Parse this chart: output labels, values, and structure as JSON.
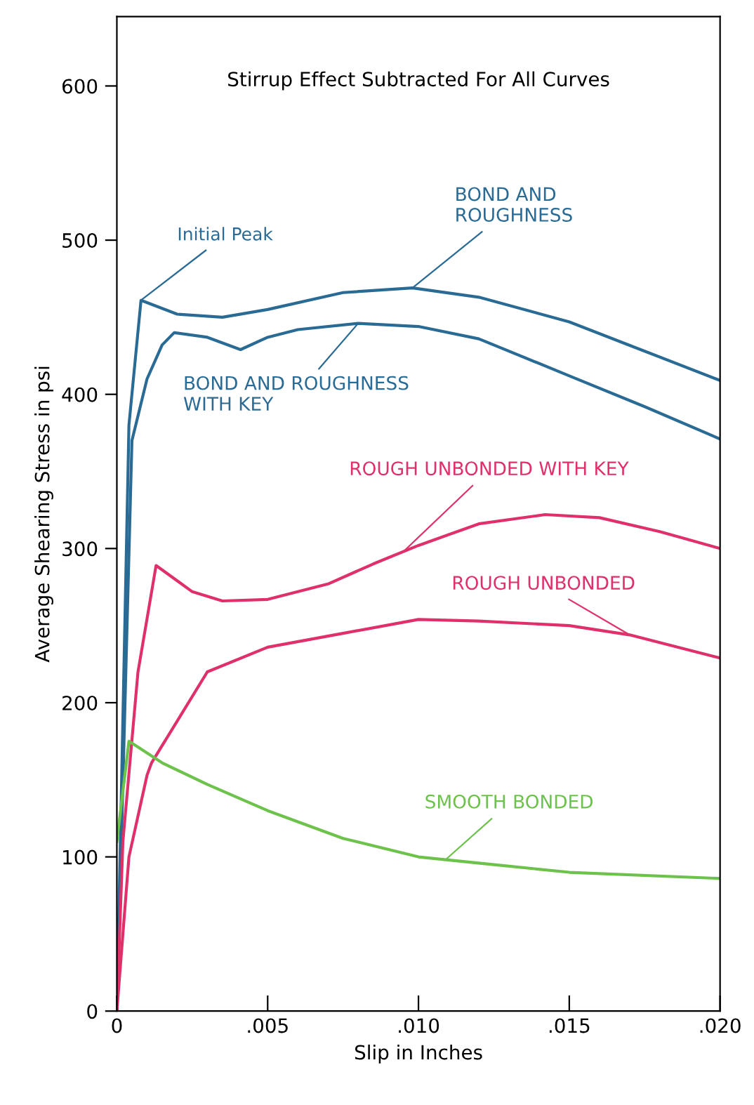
{
  "chart_data": {
    "type": "line",
    "xlabel": "Slip in Inches",
    "ylabel": "Average Shearing Stress in psi",
    "xlim": [
      0,
      0.02
    ],
    "ylim": [
      0,
      645
    ],
    "xticks": [
      0,
      {
        "value": 0.005,
        "label": ".005"
      },
      {
        "value": 0.01,
        "label": ".010"
      },
      {
        "value": 0.015,
        "label": ".015"
      },
      {
        "value": 0.02,
        "label": ".020"
      }
    ],
    "yticks": [
      0,
      100,
      200,
      300,
      400,
      500,
      600
    ],
    "grid": false,
    "legend": false,
    "marker": "none",
    "line_style": "solid",
    "annotations": [
      "Stirrup Effect Subtracted For All Curves",
      {
        "text": "Initial Peak",
        "x": 0.0008,
        "y": 461
      }
    ],
    "series": [
      {
        "name": "BOND AND ROUGHNESS",
        "color": "#2a6b95",
        "x": [
          0,
          0.0004,
          0.0008,
          0.002,
          0.0035,
          0.005,
          0.0075,
          0.0098,
          0.012,
          0.015,
          0.0175,
          0.02
        ],
        "values": [
          0,
          380,
          461,
          452,
          450,
          455,
          466,
          469,
          463,
          447,
          428,
          409
        ]
      },
      {
        "name": "BOND AND ROUGHNESS WITH KEY",
        "color": "#2a6b95",
        "x": [
          0,
          0.0005,
          0.001,
          0.0015,
          0.0019,
          0.003,
          0.0041,
          0.005,
          0.006,
          0.008,
          0.01,
          0.012,
          0.015,
          0.0175,
          0.02
        ],
        "values": [
          0,
          370,
          410,
          432,
          440,
          437,
          429,
          437,
          442,
          446,
          444,
          436,
          412,
          392,
          371
        ]
      },
      {
        "name": "ROUGH UNBONDED WITH KEY",
        "color": "#e0306a",
        "x": [
          0,
          0.0002,
          0.0007,
          0.0013,
          0.0025,
          0.0035,
          0.005,
          0.007,
          0.0085,
          0.01,
          0.012,
          0.0142,
          0.016,
          0.018,
          0.02
        ],
        "values": [
          0,
          110,
          220,
          289,
          272,
          266,
          267,
          277,
          290,
          302,
          316,
          322,
          320,
          311,
          300
        ]
      },
      {
        "name": "ROUGH UNBONDED",
        "color": "#e0306a",
        "x": [
          0,
          0.0004,
          0.001,
          0.00115,
          0.003,
          0.005,
          0.0075,
          0.01,
          0.012,
          0.015,
          0.017,
          0.02
        ],
        "values": [
          0,
          100,
          153,
          161,
          220,
          236,
          245,
          254,
          253,
          250,
          244,
          229
        ]
      },
      {
        "name": "SMOOTH BONDED",
        "color": "#6cc24a",
        "x": [
          0,
          0.0004,
          0.0015,
          0.003,
          0.005,
          0.0075,
          0.01,
          0.0125,
          0.015,
          0.02
        ],
        "values": [
          110,
          175,
          161,
          147,
          130,
          112,
          100,
          95,
          90,
          86
        ]
      }
    ]
  }
}
